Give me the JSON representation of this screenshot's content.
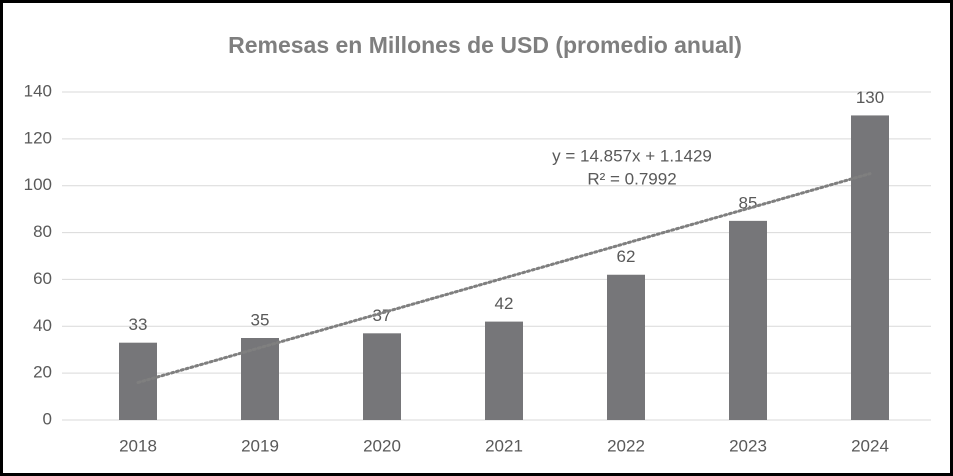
{
  "chart_data": {
    "type": "bar",
    "title": "Remesas en Millones de USD (promedio anual)",
    "categories": [
      "2018",
      "2019",
      "2020",
      "2021",
      "2022",
      "2023",
      "2024"
    ],
    "values": [
      33,
      35,
      37,
      42,
      62,
      85,
      130
    ],
    "color": "#767679",
    "ylim": [
      0,
      140
    ],
    "yticks": [
      0,
      20,
      40,
      60,
      80,
      100,
      120,
      140
    ],
    "grid": true,
    "trendline": true,
    "annotations": [
      "y = 14.857x + 1.1429",
      "R² = 0.7992"
    ]
  }
}
